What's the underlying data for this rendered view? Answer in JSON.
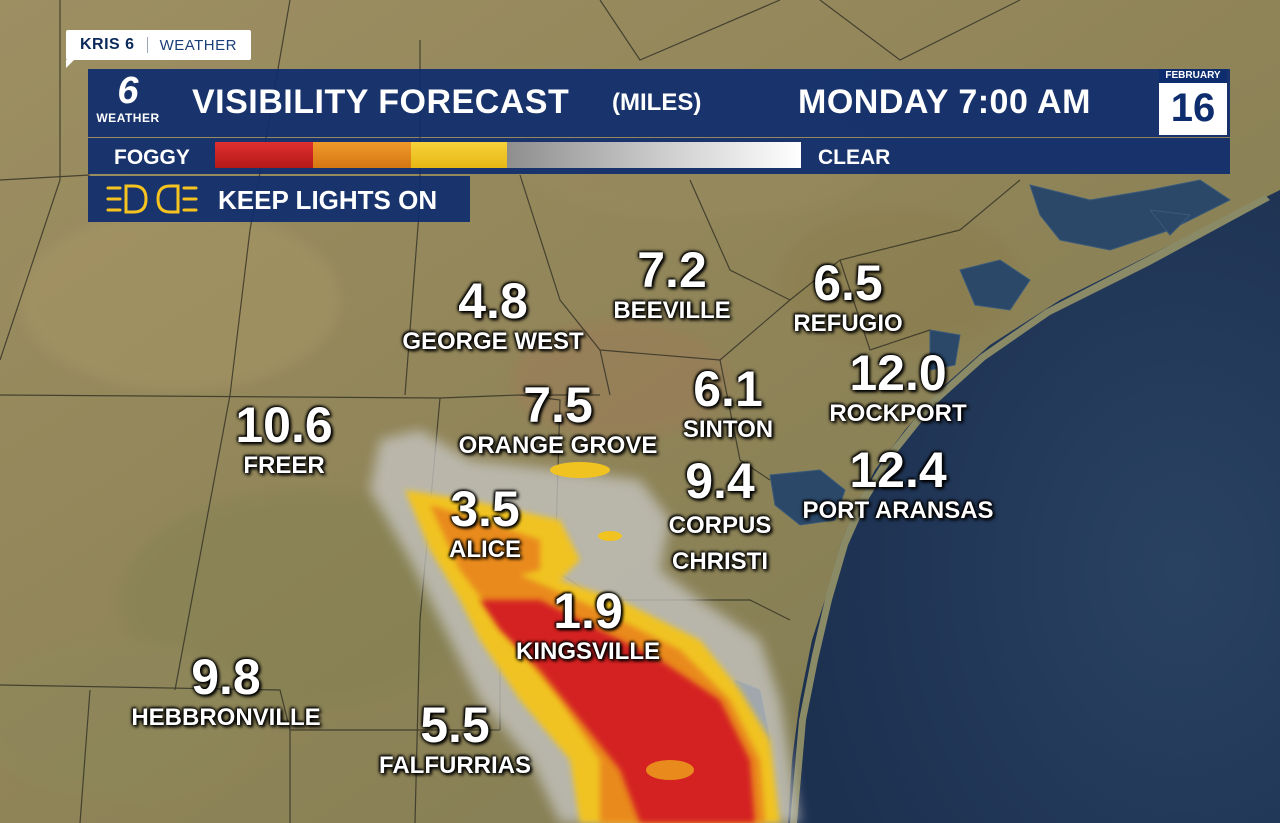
{
  "brand": {
    "station": "KRIS 6",
    "section": "WEATHER"
  },
  "logo": {
    "number": "6",
    "label": "WEATHER"
  },
  "header": {
    "title": "VISIBILITY FORECAST",
    "units": "(MILES)",
    "datetime": "MONDAY 7:00 AM",
    "month": "FEBRUARY",
    "day": "16"
  },
  "legend": {
    "left_label": "FOGGY",
    "right_label": "CLEAR",
    "colors": [
      "#d42222",
      "#e98a1c",
      "#f0c320",
      "#9a9a9a",
      "#ffffff"
    ]
  },
  "notice": {
    "text": "KEEP LIGHTS ON",
    "icon": "headlights-icon"
  },
  "cities": [
    {
      "value": "4.8",
      "name": "GEORGE WEST"
    },
    {
      "value": "7.2",
      "name": "BEEVILLE"
    },
    {
      "value": "6.5",
      "name": "REFUGIO"
    },
    {
      "value": "12.0",
      "name": "ROCKPORT"
    },
    {
      "value": "7.5",
      "name": "ORANGE GROVE"
    },
    {
      "value": "6.1",
      "name": "SINTON"
    },
    {
      "value": "10.6",
      "name": "FREER"
    },
    {
      "value": "9.4",
      "name": "CORPUS CHRISTI"
    },
    {
      "value": "12.4",
      "name": "PORT ARANSAS"
    },
    {
      "value": "3.5",
      "name": "ALICE"
    },
    {
      "value": "1.9",
      "name": "KINGSVILLE"
    },
    {
      "value": "9.8",
      "name": "HEBBRONVILLE"
    },
    {
      "value": "5.5",
      "name": "FALFURRIAS"
    }
  ]
}
